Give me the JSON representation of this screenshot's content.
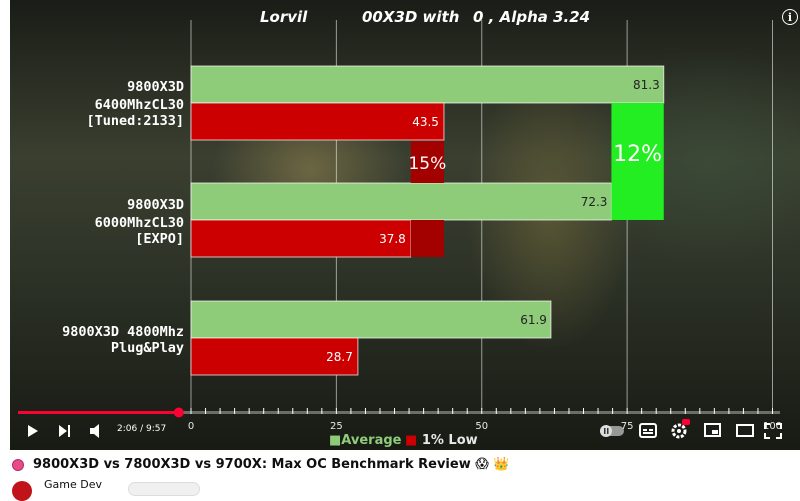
{
  "video": {
    "title": "9800X3D vs 7800X3D vs 9700X: Max OC Benchmark Review 😱 👑",
    "channel": "Game Dev",
    "time": "2:06 / 9:57",
    "progress": 0.211
  },
  "icons": {
    "info": "i"
  },
  "colors": {
    "average": "#8fcc7a",
    "low": "#cc0000",
    "lowDark": "#a30000",
    "highlight": "#22ee22",
    "progress": "#ff0033"
  },
  "chart_data": {
    "type": "bar",
    "title": "Lorvil                               , Alpha 3.24",
    "title_left": "Lorvil",
    "title_mid": "00X3D with",
    "title_right": "0 , Alpha 3.24",
    "categories": [
      [
        "9800X3D",
        "6400MhzCL30",
        "[Tuned:2133]"
      ],
      [
        "9800X3D",
        "6000MhzCL30",
        "[EXPO]"
      ],
      [
        "9800X3D 4800Mhz",
        "Plug&Play"
      ]
    ],
    "series": [
      {
        "name": "Average",
        "values": [
          81.3,
          72.3,
          61.9
        ]
      },
      {
        "name": "1% Low",
        "values": [
          43.5,
          37.8,
          28.7
        ]
      }
    ],
    "xticks": [
      "0",
      "25",
      "50",
      "75",
      "100"
    ],
    "xlim": [
      0,
      100
    ],
    "annotations": [
      {
        "text": "15%",
        "from": 37.8,
        "to": 43.5
      },
      {
        "text": "12%",
        "from": 72.3,
        "to": 81.3
      }
    ],
    "legend": {
      "position": "bottom",
      "prefix": "■"
    },
    "grid": true
  }
}
